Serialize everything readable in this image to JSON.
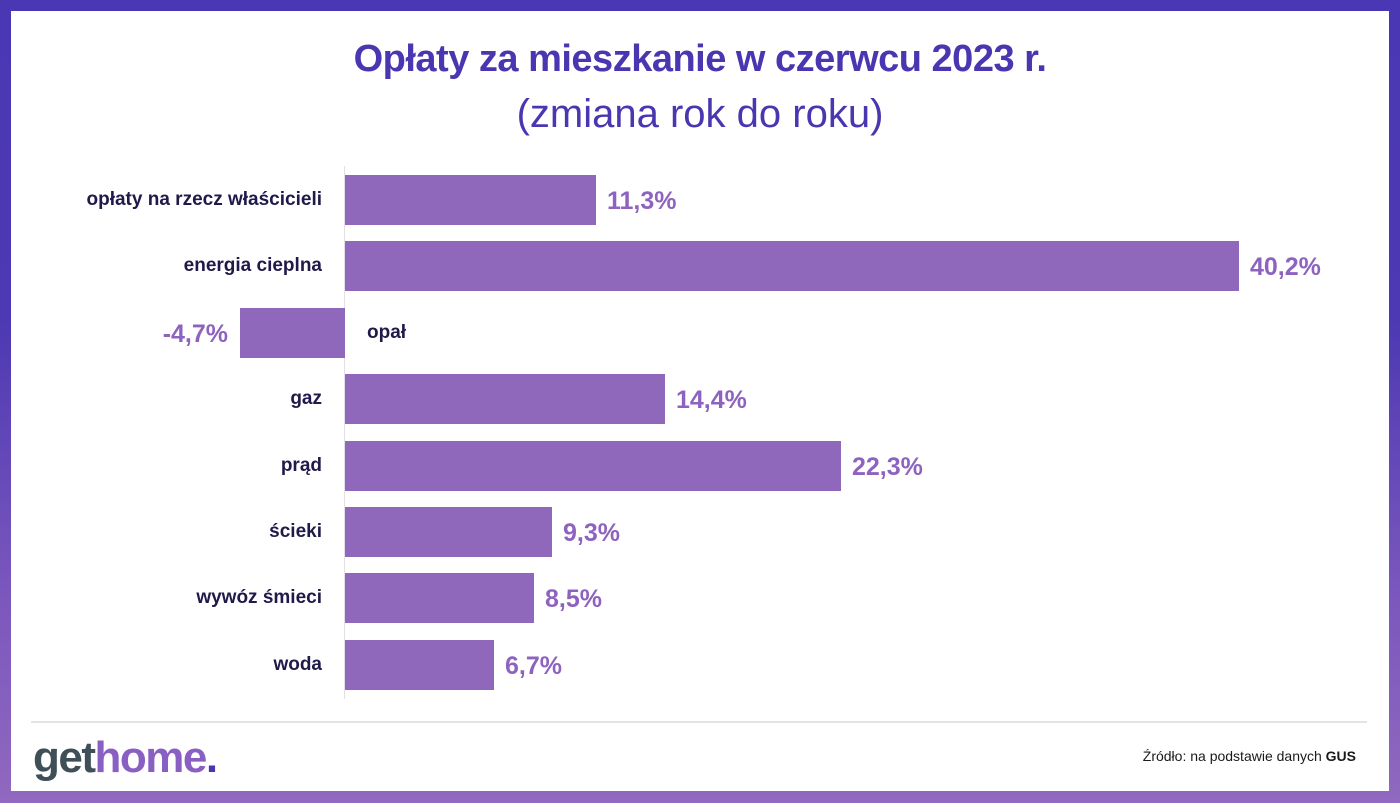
{
  "title": "Opłaty za mieszkanie w czerwcu 2023 r.",
  "subtitle": "(zmiana rok do roku)",
  "chart_data": {
    "type": "bar",
    "orientation": "horizontal",
    "title": "Opłaty za mieszkanie w czerwcu 2023 r.",
    "subtitle": "(zmiana rok do roku)",
    "categories": [
      "opłaty na rzecz właścicieli",
      "energia cieplna",
      "opał",
      "gaz",
      "prąd",
      "ścieki",
      "wywóz śmieci",
      "woda"
    ],
    "values": [
      11.3,
      40.2,
      -4.7,
      14.4,
      22.3,
      9.3,
      8.5,
      6.7
    ],
    "value_labels": [
      "11,3%",
      "40,2%",
      "-4,7%",
      "14,4%",
      "22,3%",
      "9,3%",
      "8,5%",
      "6,7%"
    ],
    "xlabel": "",
    "ylabel": "",
    "unit": "%",
    "xlim": [
      -4.7,
      40.2
    ],
    "grid": false,
    "legend": null,
    "bar_color": "#9068bb"
  },
  "colors": {
    "title": "#4a36b0",
    "bar": "#9068bb",
    "value_label": "#8e63bf",
    "category_label": "#1f1a4a",
    "frame_top": "#4a37b3",
    "frame_bottom": "#9068bf"
  },
  "footer": {
    "logo": {
      "part1": "get",
      "part2": "home",
      "part3": "."
    },
    "source_prefix": "Źródło: na podstawie danych ",
    "source_bold": "GUS"
  }
}
